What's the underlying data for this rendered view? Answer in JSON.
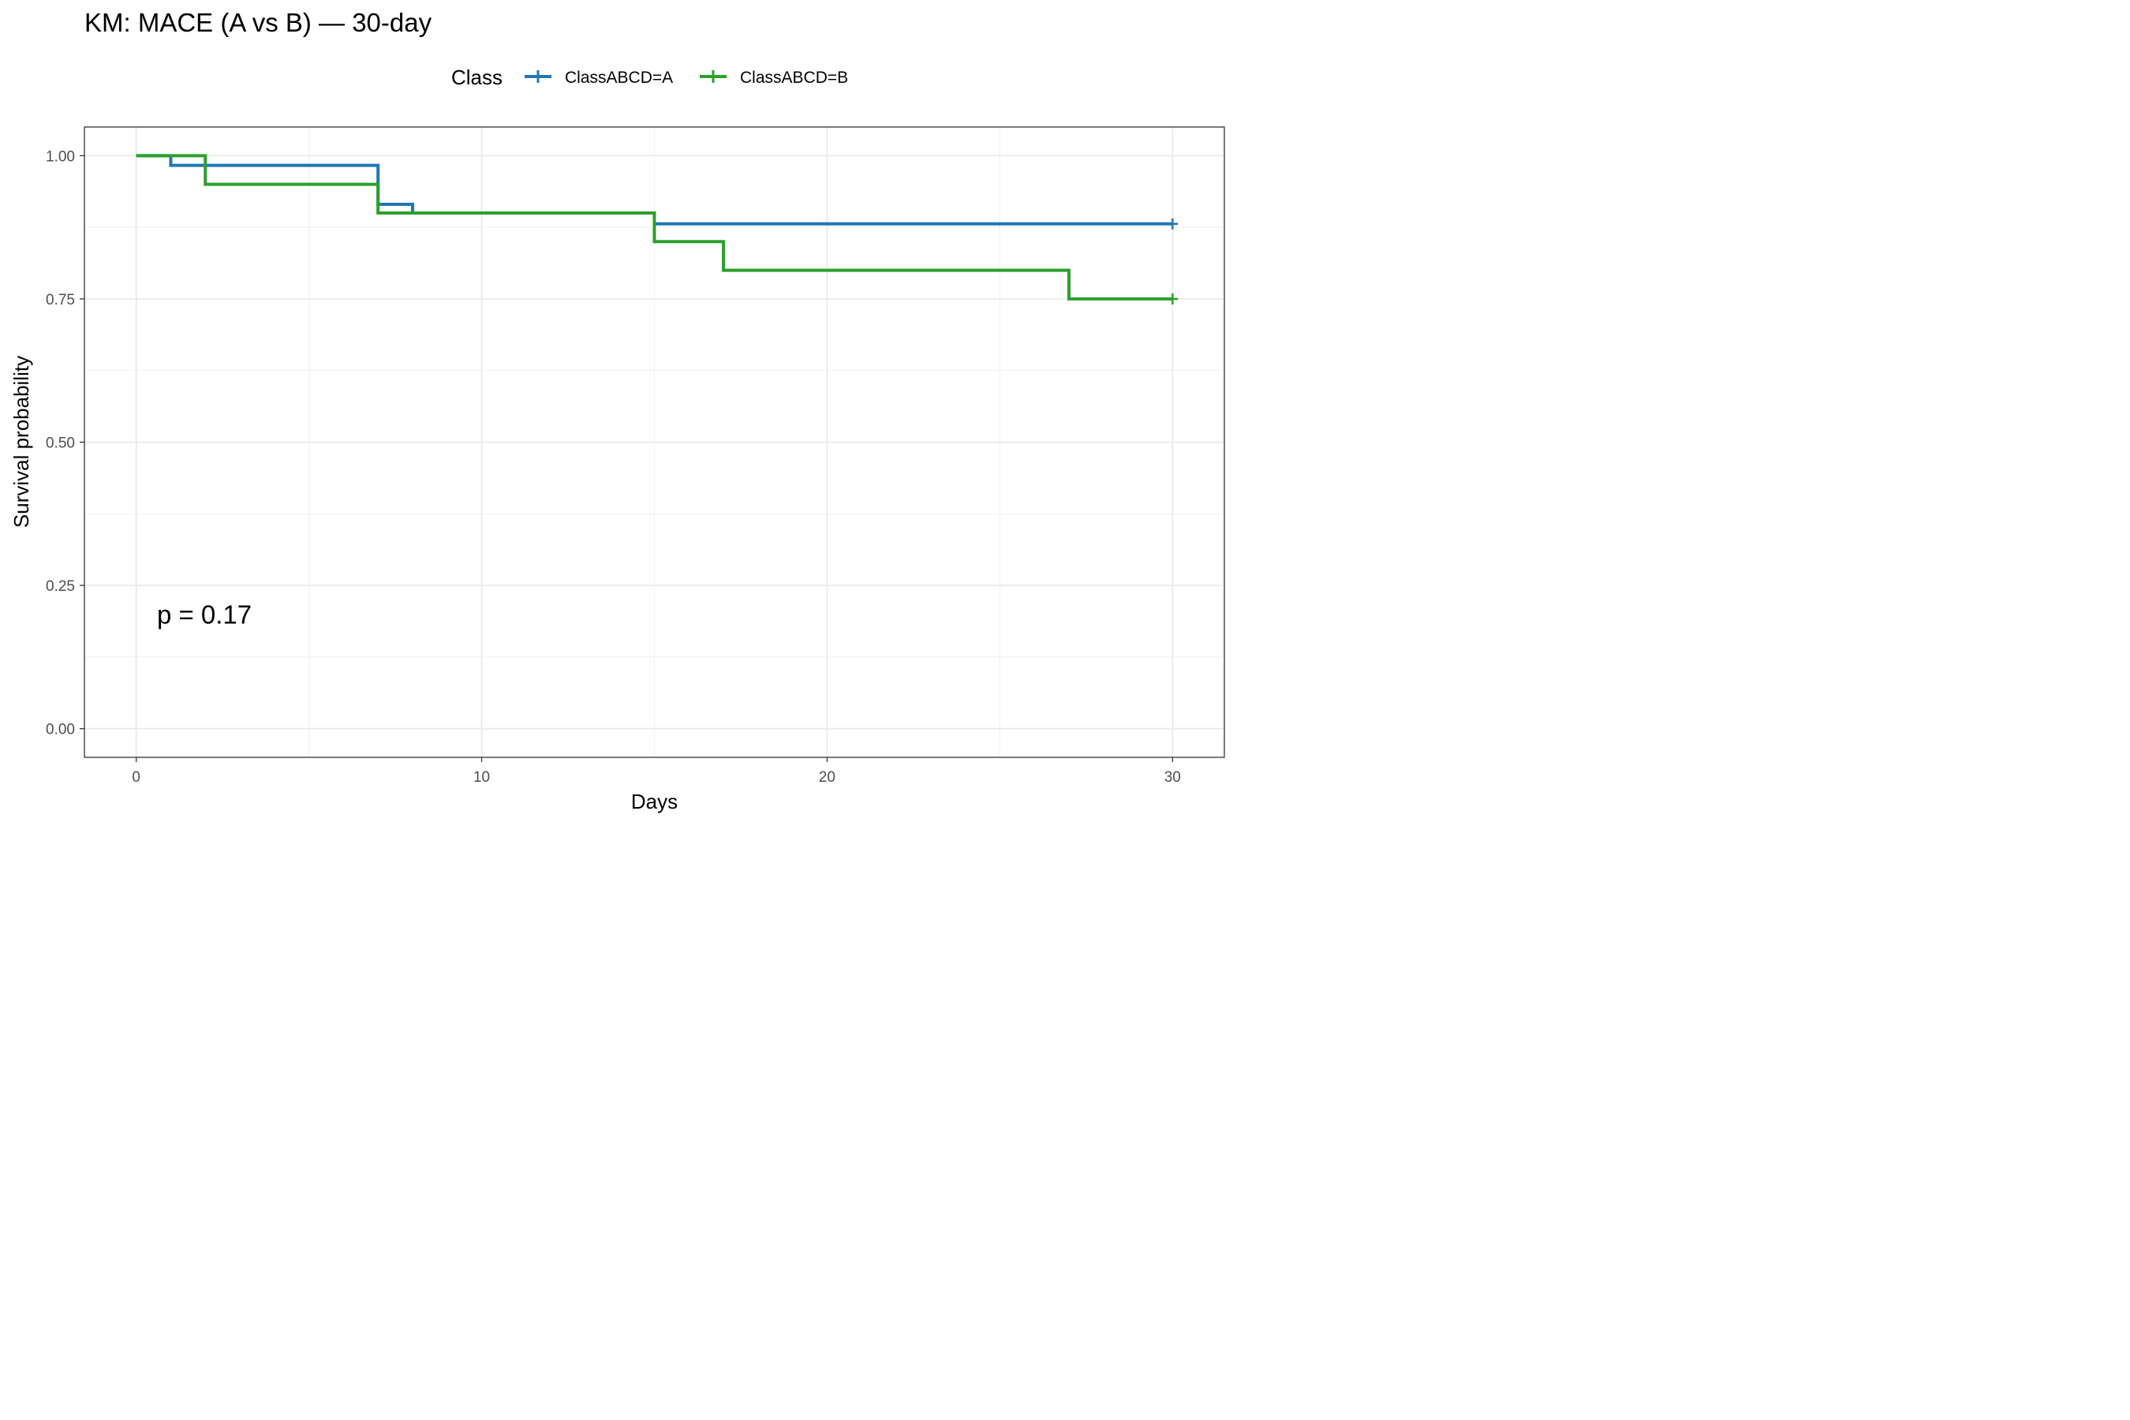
{
  "chart_data": {
    "type": "line",
    "subtype": "kaplan-meier step",
    "title": "KM: MACE (A vs B) — 30-day",
    "xlabel": "Days",
    "ylabel": "Survival probability",
    "xlim": [
      -1.5,
      31.5
    ],
    "ylim": [
      -0.05,
      1.05
    ],
    "x_ticks": [
      0,
      10,
      20,
      30
    ],
    "x_tick_labels": [
      "0",
      "10",
      "20",
      "30"
    ],
    "y_ticks": [
      0,
      0.25,
      0.5,
      0.75,
      1
    ],
    "y_tick_labels": [
      "0.00",
      "0.25",
      "0.50",
      "0.75",
      "1.00"
    ],
    "x_minor_grid": [
      5,
      15,
      25
    ],
    "y_minor_grid": [
      0.125,
      0.375,
      0.625,
      0.875
    ],
    "grid": true,
    "legend": {
      "title": "Class",
      "position": "top",
      "entries": [
        "ClassABCD=A",
        "ClassABCD=B"
      ]
    },
    "annotation": {
      "text": "p = 0.17",
      "x": 0.6,
      "y": 0.2
    },
    "series": [
      {
        "name": "ClassABCD=A",
        "color": "#1f77b4",
        "x": [
          0,
          1,
          7,
          8,
          15,
          30
        ],
        "y": [
          1.0,
          0.983,
          0.915,
          0.9,
          0.881,
          0.881
        ],
        "censored": [
          {
            "x": 30,
            "y": 0.881
          }
        ]
      },
      {
        "name": "ClassABCD=B",
        "color": "#2ca02c",
        "x": [
          0,
          2,
          7,
          15,
          17,
          27,
          30
        ],
        "y": [
          1.0,
          0.95,
          0.9,
          0.85,
          0.8,
          0.75,
          0.75
        ],
        "censored": [
          {
            "x": 30,
            "y": 0.75
          }
        ]
      }
    ]
  }
}
